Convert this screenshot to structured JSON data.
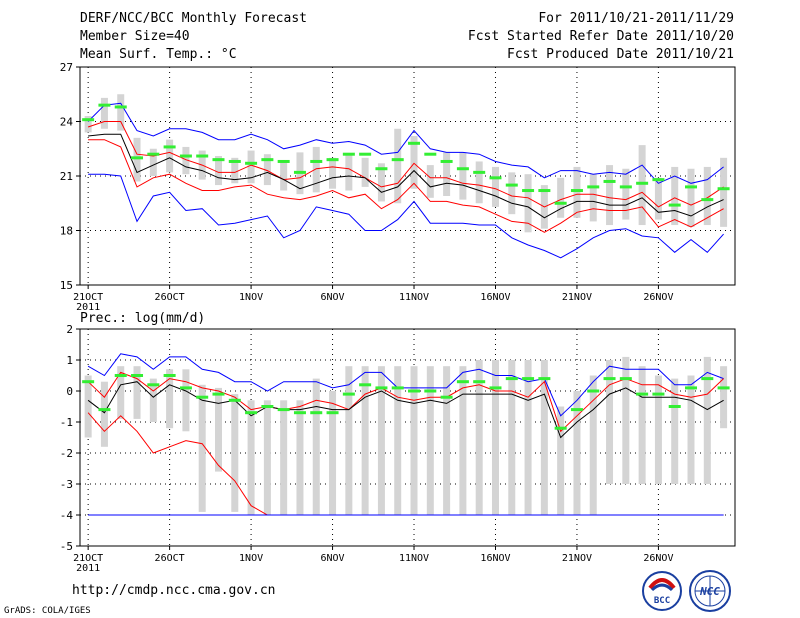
{
  "header": {
    "title": "DERF/NCC/BCC Monthly Forecast",
    "member": "Member Size=40",
    "variable": "Mean Surf. Temp.: °C",
    "period": "For 2011/10/21-2011/11/29",
    "started": "Fcst Started Refer Date 2011/10/20",
    "produced": "Fcst Produced Date 2011/10/21"
  },
  "footer": {
    "url": "http://cmdp.ncc.cma.gov.cn",
    "credit": "GrADS: COLA/IGES",
    "logo_bcc": "BCC",
    "logo_ncc": "NCC"
  },
  "colors": {
    "max": "#0000ff",
    "p90": "#ff0000",
    "median": "#000000",
    "obs": "#33ee33",
    "bar": "#d4d4d4"
  },
  "chart_data": [
    {
      "type": "line",
      "title": "Mean Surf. Temp.: °C",
      "x_tick_labels": [
        "21OCT",
        "26OCT",
        "1NOV",
        "6NOV",
        "11NOV",
        "16NOV",
        "21NOV",
        "26NOV"
      ],
      "x_tick_days": [
        1,
        6,
        11,
        16,
        21,
        26,
        31,
        36
      ],
      "x_sublabel": "2011",
      "xlim": [
        0.5,
        40.7
      ],
      "ylim": [
        15,
        27
      ],
      "y_ticks": [
        15,
        18,
        21,
        24,
        27
      ],
      "grid": true,
      "days": [
        1,
        2,
        3,
        4,
        5,
        6,
        7,
        8,
        9,
        10,
        11,
        12,
        13,
        14,
        15,
        16,
        17,
        18,
        19,
        20,
        21,
        22,
        23,
        24,
        25,
        26,
        27,
        28,
        29,
        30,
        31,
        32,
        33,
        34,
        35,
        36,
        37,
        38,
        39,
        40
      ],
      "series": [
        {
          "name": "max",
          "values": [
            24.0,
            24.9,
            25.0,
            23.5,
            23.2,
            23.6,
            23.6,
            23.4,
            23.0,
            23.0,
            23.3,
            23.0,
            22.5,
            22.7,
            23.0,
            22.8,
            22.9,
            22.7,
            22.2,
            22.3,
            23.5,
            22.5,
            22.3,
            22.3,
            22.2,
            21.8,
            21.6,
            21.5,
            20.9,
            21.3,
            21.3,
            21.1,
            21.2,
            21.1,
            21.6,
            20.6,
            21.0,
            20.6,
            20.8,
            21.5
          ]
        },
        {
          "name": "p90",
          "values": [
            23.7,
            24.0,
            24.0,
            22.2,
            22.1,
            22.3,
            21.9,
            21.6,
            21.2,
            21.2,
            21.6,
            21.3,
            20.8,
            20.9,
            21.4,
            21.5,
            21.4,
            20.9,
            20.4,
            20.6,
            21.7,
            20.9,
            20.9,
            20.6,
            20.5,
            20.3,
            19.9,
            19.8,
            19.3,
            19.7,
            20.0,
            20.0,
            19.8,
            19.7,
            20.1,
            19.3,
            19.8,
            19.4,
            19.8,
            20.4
          ]
        },
        {
          "name": "median",
          "values": [
            23.2,
            23.3,
            23.3,
            21.2,
            21.6,
            22.0,
            21.5,
            21.3,
            20.9,
            20.8,
            20.9,
            21.2,
            20.8,
            20.3,
            20.6,
            20.9,
            21.0,
            20.9,
            20.1,
            20.4,
            21.3,
            20.4,
            20.6,
            20.5,
            20.2,
            19.9,
            19.5,
            19.3,
            18.7,
            19.2,
            19.6,
            19.6,
            19.4,
            19.4,
            19.8,
            19.0,
            19.1,
            18.8,
            19.3,
            19.7
          ]
        },
        {
          "name": "p10",
          "values": [
            23.0,
            23.0,
            22.6,
            20.4,
            20.9,
            21.1,
            20.6,
            20.2,
            20.2,
            20.4,
            20.5,
            20.0,
            19.8,
            19.7,
            19.9,
            20.2,
            19.8,
            20.0,
            19.2,
            19.7,
            20.6,
            19.6,
            19.6,
            19.4,
            19.3,
            18.9,
            18.5,
            18.4,
            17.9,
            18.4,
            19.0,
            19.2,
            19.1,
            19.1,
            19.3,
            18.2,
            18.6,
            18.2,
            18.7,
            19.2
          ]
        },
        {
          "name": "min",
          "values": [
            21.1,
            21.1,
            21.0,
            18.5,
            19.9,
            20.1,
            19.1,
            19.2,
            18.3,
            18.4,
            18.6,
            18.8,
            17.6,
            18.0,
            19.3,
            19.1,
            18.9,
            18.0,
            18.0,
            18.6,
            19.6,
            18.4,
            18.4,
            18.4,
            18.3,
            18.3,
            17.6,
            17.2,
            16.9,
            16.5,
            17.0,
            17.6,
            18.0,
            18.1,
            17.7,
            17.6,
            16.8,
            17.5,
            16.8,
            17.8
          ]
        },
        {
          "name": "obs",
          "values": [
            24.1,
            24.9,
            24.8,
            22.0,
            22.2,
            22.6,
            22.1,
            22.1,
            21.9,
            21.8,
            21.7,
            21.9,
            21.8,
            21.2,
            21.8,
            21.9,
            22.2,
            22.2,
            21.4,
            21.9,
            22.8,
            22.2,
            21.8,
            21.4,
            21.2,
            20.9,
            20.5,
            20.2,
            20.2,
            19.5,
            20.2,
            20.4,
            20.7,
            20.4,
            20.6,
            20.8,
            19.4,
            20.4,
            19.7,
            20.3
          ]
        },
        {
          "name": "spread_low",
          "values": [
            23.4,
            23.6,
            23.5,
            20.7,
            21.0,
            21.2,
            21.1,
            20.8,
            20.5,
            20.6,
            20.6,
            20.5,
            20.2,
            20.0,
            20.1,
            20.3,
            20.2,
            20.4,
            19.6,
            19.5,
            20.3,
            19.8,
            19.9,
            19.7,
            19.5,
            19.3,
            18.9,
            17.9,
            18.1,
            18.7,
            18.7,
            18.5,
            18.3,
            18.6,
            18.3,
            18.6,
            18.3,
            18.2,
            18.3,
            18.2
          ]
        },
        {
          "name": "spread_high",
          "values": [
            24.3,
            25.3,
            25.5,
            23.1,
            22.5,
            23.0,
            22.6,
            22.4,
            22.1,
            22.0,
            22.4,
            22.2,
            21.8,
            22.3,
            22.6,
            22.0,
            22.2,
            22.0,
            21.7,
            23.6,
            23.2,
            21.6,
            22.3,
            22.3,
            21.8,
            21.5,
            21.2,
            21.1,
            20.5,
            20.9,
            21.5,
            21.1,
            21.6,
            21.4,
            22.7,
            20.9,
            21.5,
            21.4,
            21.5,
            22.0
          ]
        }
      ]
    },
    {
      "type": "line",
      "title": "Prec.: log(mm/d)",
      "x_tick_labels": [
        "21OCT",
        "26OCT",
        "1NOV",
        "6NOV",
        "11NOV",
        "16NOV",
        "21NOV",
        "26NOV"
      ],
      "x_tick_days": [
        1,
        6,
        11,
        16,
        21,
        26,
        31,
        36
      ],
      "x_sublabel": "2011",
      "xlim": [
        0.5,
        40.7
      ],
      "ylim": [
        -5,
        2
      ],
      "y_ticks": [
        -5,
        -4,
        -3,
        -2,
        -1,
        0,
        1,
        2
      ],
      "grid": true,
      "days": [
        1,
        2,
        3,
        4,
        5,
        6,
        7,
        8,
        9,
        10,
        11,
        12,
        13,
        14,
        15,
        16,
        17,
        18,
        19,
        20,
        21,
        22,
        23,
        24,
        25,
        26,
        27,
        28,
        29,
        30,
        31,
        32,
        33,
        34,
        35,
        36,
        37,
        38,
        39,
        40
      ],
      "series": [
        {
          "name": "max",
          "values": [
            0.8,
            0.5,
            1.2,
            1.1,
            0.7,
            1.1,
            1.1,
            0.7,
            0.6,
            0.3,
            0.3,
            0.0,
            0.3,
            0.3,
            0.3,
            0.1,
            0.2,
            0.6,
            0.6,
            0.1,
            0.1,
            0.1,
            0.1,
            0.6,
            0.7,
            0.5,
            0.5,
            0.3,
            0.4,
            -0.8,
            -0.3,
            0.3,
            0.8,
            0.7,
            0.7,
            0.7,
            0.2,
            0.2,
            0.6,
            0.4
          ]
        },
        {
          "name": "p90",
          "values": [
            0.3,
            -0.2,
            0.6,
            0.4,
            0.0,
            0.4,
            0.3,
            0.1,
            0.0,
            -0.2,
            -0.6,
            -0.5,
            -0.6,
            -0.5,
            -0.3,
            -0.4,
            -0.6,
            -0.1,
            0.1,
            -0.2,
            -0.3,
            -0.2,
            -0.2,
            0.1,
            0.2,
            0.0,
            0.0,
            -0.2,
            0.3,
            -1.3,
            -0.8,
            -0.3,
            0.2,
            0.4,
            0.2,
            0.2,
            -0.1,
            -0.2,
            -0.1,
            0.4
          ]
        },
        {
          "name": "median",
          "values": [
            -0.3,
            -0.7,
            0.2,
            0.3,
            -0.2,
            0.2,
            0.0,
            -0.3,
            -0.4,
            -0.3,
            -0.8,
            -0.5,
            -0.6,
            -0.6,
            -0.5,
            -0.6,
            -0.6,
            -0.2,
            0.0,
            -0.3,
            -0.4,
            -0.3,
            -0.4,
            -0.1,
            -0.1,
            -0.1,
            -0.1,
            -0.3,
            -0.1,
            -1.5,
            -1.0,
            -0.6,
            -0.1,
            0.1,
            -0.2,
            -0.2,
            -0.2,
            -0.3,
            -0.6,
            -0.3
          ]
        },
        {
          "name": "p10",
          "values": [
            -0.7,
            -1.3,
            -0.8,
            -1.3,
            -2.0,
            -1.8,
            -1.6,
            -1.7,
            -2.4,
            -2.9,
            -3.7,
            -4.0,
            -4.0,
            -4.0,
            -4.0,
            -4.0,
            -4.0,
            -4.0,
            -4.0,
            -4.0,
            -4.0,
            -4.0,
            -4.0,
            -4.0,
            -4.0,
            -4.0,
            -4.0,
            -4.0,
            -4.0,
            -4.0,
            -4.0,
            -4.0,
            -4.0,
            -4.0,
            -4.0,
            -4.0,
            -4.0,
            -4.0,
            -4.0,
            -4.0
          ]
        },
        {
          "name": "min",
          "values": [
            -4.0,
            -4.0,
            -4.0,
            -4.0,
            -4.0,
            -4.0,
            -4.0,
            -4.0,
            -4.0,
            -4.0,
            -4.0,
            -4.0,
            -4.0,
            -4.0,
            -4.0,
            -4.0,
            -4.0,
            -4.0,
            -4.0,
            -4.0,
            -4.0,
            -4.0,
            -4.0,
            -4.0,
            -4.0,
            -4.0,
            -4.0,
            -4.0,
            -4.0,
            -4.0,
            -4.0,
            -4.0,
            -4.0,
            -4.0,
            -4.0,
            -4.0,
            -4.0,
            -4.0,
            -4.0,
            -4.0
          ]
        },
        {
          "name": "obs",
          "values": [
            0.3,
            -0.6,
            0.5,
            0.5,
            0.2,
            0.5,
            0.1,
            -0.2,
            -0.1,
            -0.3,
            -0.7,
            -0.5,
            -0.6,
            -0.7,
            -0.7,
            -0.7,
            -0.1,
            0.2,
            0.1,
            0.1,
            0.0,
            0.0,
            -0.2,
            0.3,
            0.3,
            0.1,
            0.4,
            0.4,
            0.4,
            -1.2,
            -0.6,
            0.0,
            0.4,
            0.4,
            -0.1,
            -0.1,
            -0.5,
            0.1,
            0.4,
            0.1
          ]
        },
        {
          "name": "spread_low",
          "values": [
            -1.5,
            -1.8,
            -0.9,
            -0.9,
            -1.0,
            -1.2,
            -1.3,
            -3.9,
            -2.6,
            -3.9,
            -4.0,
            -4.0,
            -4.0,
            -4.0,
            -4.0,
            -4.0,
            -4.0,
            -4.0,
            -4.0,
            -4.0,
            -4.0,
            -4.0,
            -4.0,
            -4.0,
            -4.0,
            -4.0,
            -4.0,
            -4.0,
            -4.0,
            -4.0,
            -4.0,
            -4.0,
            -3.0,
            -3.0,
            -3.0,
            -3.0,
            -3.0,
            -3.0,
            -3.0,
            -1.2
          ]
        },
        {
          "name": "spread_high",
          "values": [
            0.5,
            0.3,
            0.8,
            0.8,
            0.4,
            0.7,
            0.7,
            0.2,
            0.1,
            -0.1,
            -0.3,
            -0.3,
            -0.3,
            -0.3,
            0.4,
            0.0,
            0.8,
            0.8,
            0.8,
            0.8,
            0.8,
            0.8,
            0.8,
            0.8,
            1.0,
            1.0,
            1.0,
            1.0,
            1.0,
            -0.5,
            0.0,
            0.5,
            1.0,
            1.1,
            0.8,
            0.5,
            0.4,
            0.5,
            1.1,
            0.8
          ]
        }
      ]
    }
  ]
}
